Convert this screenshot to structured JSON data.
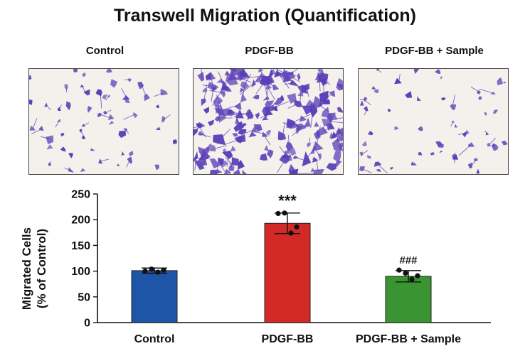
{
  "figure": {
    "title": "Transwell Migration (Quantification)",
    "panels": [
      {
        "label": "Control",
        "cell_density": "low"
      },
      {
        "label": "PDGF-BB",
        "cell_density": "high"
      },
      {
        "label": "PDGF-BB + Sample",
        "cell_density": "low"
      }
    ],
    "stain_color": "#5b3fb8",
    "background_color": "#f4f1ec"
  },
  "chart_data": {
    "type": "bar",
    "title": "",
    "ylabel_line1": "Migrated Cells",
    "ylabel_line2": "(% of Control)",
    "xlabel": "",
    "categories": [
      "Control",
      "PDGF-BB",
      "PDGF-BB + Sample"
    ],
    "values": [
      101,
      193,
      90
    ],
    "errors": [
      5,
      20,
      11
    ],
    "points": [
      [
        100,
        104,
        98,
        102
      ],
      [
        212,
        213,
        174,
        186
      ],
      [
        102,
        96,
        84,
        91
      ]
    ],
    "annotations": [
      "",
      "***",
      "###"
    ],
    "colors": [
      "#1f55a6",
      "#d42a26",
      "#3a9432"
    ],
    "ylim": [
      0,
      250
    ],
    "yticks": [
      0,
      50,
      100,
      150,
      200,
      250
    ],
    "grid": false,
    "legend": "none"
  }
}
